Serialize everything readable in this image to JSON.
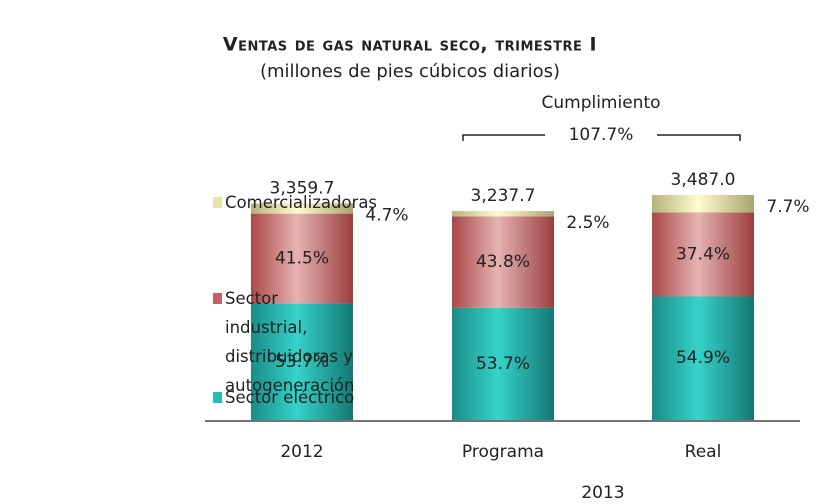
{
  "chart_data": {
    "type": "bar",
    "stacked": true,
    "title": "Ventas de gas natural seco, trimestre I",
    "subtitle": "(millones de pies cúbicos diarios)",
    "categories": [
      "2012",
      "Programa",
      "Real"
    ],
    "category_group": {
      "label": "2013",
      "categories": [
        1,
        2
      ]
    },
    "totals": {
      "values": [
        3359.7,
        3237.7,
        3487.0
      ],
      "value_labels": [
        "3,359.7",
        "3,237.7",
        "3,487.0"
      ]
    },
    "annotation": {
      "title": "Cumplimiento",
      "text": "107.7%"
    },
    "series": [
      {
        "name": "Sector eléctrico",
        "color": "#2bbab2",
        "values": [
          53.7,
          53.7,
          54.9
        ],
        "value_labels": [
          "53.7%",
          "53.7%",
          "54.9%"
        ]
      },
      {
        "name": "Sector industrial, distribuidoras y autogeneración",
        "color": "#c4605f",
        "values": [
          41.5,
          43.8,
          37.4
        ],
        "value_labels": [
          "41.5%",
          "43.8%",
          "37.4%"
        ]
      },
      {
        "name": "Comercializadoras",
        "color": "#e6e3a8",
        "values": [
          4.7,
          2.5,
          7.7
        ],
        "value_labels": [
          "4.7%",
          "2.5%",
          "7.7%"
        ]
      }
    ]
  }
}
